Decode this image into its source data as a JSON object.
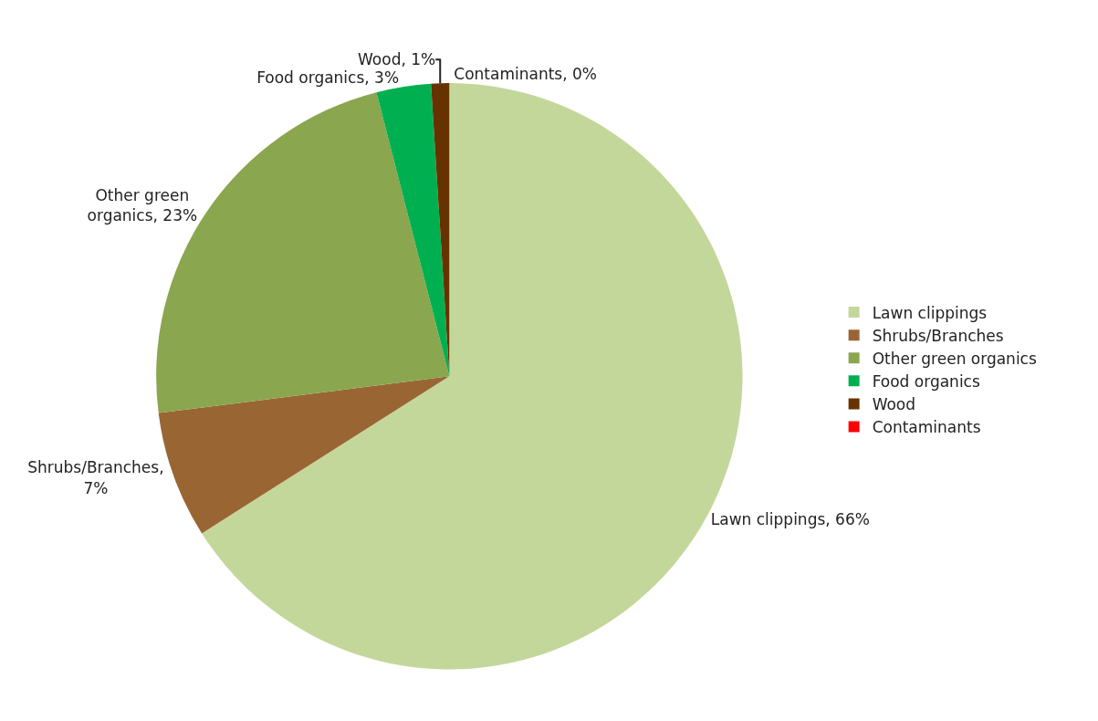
{
  "chart_data": {
    "type": "pie",
    "categories": [
      "Lawn clippings",
      "Shrubs/Branches",
      "Other green organics",
      "Food organics",
      "Wood",
      "Contaminants"
    ],
    "values": [
      66,
      7,
      23,
      3,
      1,
      0
    ],
    "colors": [
      "#c4d79b",
      "#996633",
      "#8aa64e",
      "#00b050",
      "#663300",
      "#ff0000"
    ],
    "value_labels": [
      "Lawn clippings, 66%",
      "Shrubs/Branches,\n7%",
      "Other green\norganics, 23%",
      "Food organics, 3%",
      "Wood, 1%",
      "Contaminants, 0%"
    ],
    "legend": "right"
  }
}
